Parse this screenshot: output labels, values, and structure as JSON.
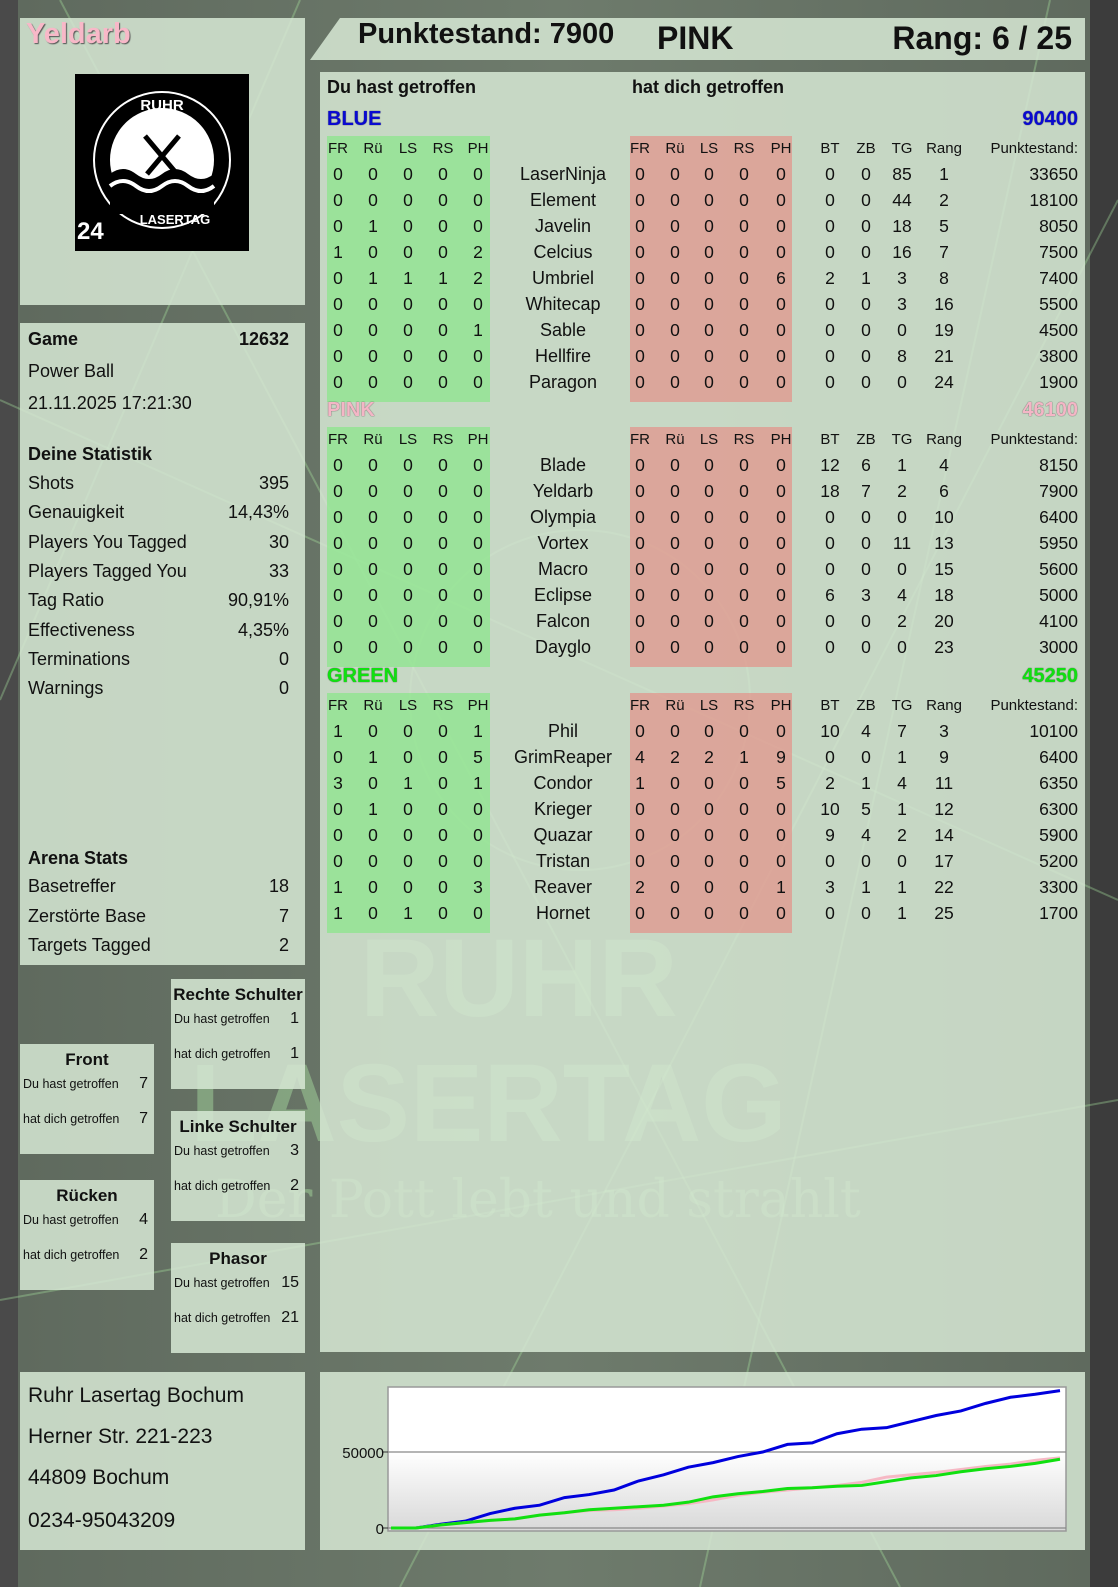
{
  "player": {
    "name": "Yeldarb",
    "score_label": "Punktestand: 7900",
    "team": "PINK",
    "rank_label": "Rang: 6 / 25"
  },
  "logo": {
    "text_top": "RUHR",
    "text_bottom": "LASERTAG",
    "badge": "24"
  },
  "watermark": {
    "line1": "RUHR",
    "line2": "LASERTAG",
    "slogan": "Der Pott lebt und strahlt"
  },
  "game": {
    "label": "Game",
    "id": "12632",
    "mode": "Power Ball",
    "datetime": "21.11.2025 17:21:30"
  },
  "stats": {
    "title": "Deine Statistik",
    "items": [
      {
        "label": "Shots",
        "value": "395"
      },
      {
        "label": "Genauigkeit",
        "value": "14,43%"
      },
      {
        "label": "Players You Tagged",
        "value": "30"
      },
      {
        "label": "Players Tagged You",
        "value": "33"
      },
      {
        "label": "Tag Ratio",
        "value": "90,91%"
      },
      {
        "label": "Effectiveness",
        "value": "4,35%"
      },
      {
        "label": "Terminations",
        "value": "0"
      },
      {
        "label": "Warnings",
        "value": "0"
      }
    ]
  },
  "arena": {
    "title": "Arena Stats",
    "items": [
      {
        "label": "Basetreffer",
        "value": "18"
      },
      {
        "label": "Zerstörte Base",
        "value": "7"
      },
      {
        "label": "Targets Tagged",
        "value": "2"
      }
    ]
  },
  "zones": [
    {
      "title": "Rechte Schulter",
      "hit_label": "Du hast getroffen",
      "hit": "1",
      "got_label": "hat dich getroffen",
      "got": "1"
    },
    {
      "title": "Front",
      "hit_label": "Du hast getroffen",
      "hit": "7",
      "got_label": "hat dich getroffen",
      "got": "7"
    },
    {
      "title": "Linke Schulter",
      "hit_label": "Du hast getroffen",
      "hit": "3",
      "got_label": "hat dich getroffen",
      "got": "2"
    },
    {
      "title": "Rücken",
      "hit_label": "Du hast getroffen",
      "hit": "4",
      "got_label": "hat dich getroffen",
      "got": "2"
    },
    {
      "title": "Phasor",
      "hit_label": "Du hast getroffen",
      "hit": "15",
      "got_label": "hat dich getroffen",
      "got": "21"
    }
  ],
  "address": [
    "Ruhr Lasertag Bochum",
    "Herner Str. 221-223",
    "44809 Bochum",
    "0234-95043209"
  ],
  "table": {
    "you_hit_label": "Du hast getroffen",
    "hit_you_label": "hat dich getroffen",
    "columns": [
      "FR",
      "Rü",
      "LS",
      "RS",
      "PH",
      "FR",
      "Rü",
      "LS",
      "RS",
      "PH",
      "BT",
      "ZB",
      "TG",
      "Rang",
      "Punktestand:"
    ],
    "teams": [
      {
        "name": "BLUE",
        "score": "90400",
        "color": "#0a0ad0",
        "rows": [
          [
            "0",
            "0",
            "0",
            "0",
            "0",
            "LaserNinja",
            "0",
            "0",
            "0",
            "0",
            "0",
            "0",
            "0",
            "85",
            "1",
            "33650"
          ],
          [
            "0",
            "0",
            "0",
            "0",
            "0",
            "Element",
            "0",
            "0",
            "0",
            "0",
            "0",
            "0",
            "0",
            "44",
            "2",
            "18100"
          ],
          [
            "0",
            "1",
            "0",
            "0",
            "0",
            "Javelin",
            "0",
            "0",
            "0",
            "0",
            "0",
            "0",
            "0",
            "18",
            "5",
            "8050"
          ],
          [
            "1",
            "0",
            "0",
            "0",
            "2",
            "Celcius",
            "0",
            "0",
            "0",
            "0",
            "0",
            "0",
            "0",
            "16",
            "7",
            "7500"
          ],
          [
            "0",
            "1",
            "1",
            "1",
            "2",
            "Umbriel",
            "0",
            "0",
            "0",
            "0",
            "6",
            "2",
            "1",
            "3",
            "8",
            "7400"
          ],
          [
            "0",
            "0",
            "0",
            "0",
            "0",
            "Whitecap",
            "0",
            "0",
            "0",
            "0",
            "0",
            "0",
            "0",
            "3",
            "16",
            "5500"
          ],
          [
            "0",
            "0",
            "0",
            "0",
            "1",
            "Sable",
            "0",
            "0",
            "0",
            "0",
            "0",
            "0",
            "0",
            "0",
            "19",
            "4500"
          ],
          [
            "0",
            "0",
            "0",
            "0",
            "0",
            "Hellfire",
            "0",
            "0",
            "0",
            "0",
            "0",
            "0",
            "0",
            "8",
            "21",
            "3800"
          ],
          [
            "0",
            "0",
            "0",
            "0",
            "0",
            "Paragon",
            "0",
            "0",
            "0",
            "0",
            "0",
            "0",
            "0",
            "0",
            "24",
            "1900"
          ]
        ]
      },
      {
        "name": "PINK",
        "score": "46100",
        "color": "#f4b6c6",
        "rows": [
          [
            "0",
            "0",
            "0",
            "0",
            "0",
            "Blade",
            "0",
            "0",
            "0",
            "0",
            "0",
            "12",
            "6",
            "1",
            "4",
            "8150"
          ],
          [
            "0",
            "0",
            "0",
            "0",
            "0",
            "Yeldarb",
            "0",
            "0",
            "0",
            "0",
            "0",
            "18",
            "7",
            "2",
            "6",
            "7900"
          ],
          [
            "0",
            "0",
            "0",
            "0",
            "0",
            "Olympia",
            "0",
            "0",
            "0",
            "0",
            "0",
            "0",
            "0",
            "0",
            "10",
            "6400"
          ],
          [
            "0",
            "0",
            "0",
            "0",
            "0",
            "Vortex",
            "0",
            "0",
            "0",
            "0",
            "0",
            "0",
            "0",
            "11",
            "13",
            "5950"
          ],
          [
            "0",
            "0",
            "0",
            "0",
            "0",
            "Macro",
            "0",
            "0",
            "0",
            "0",
            "0",
            "0",
            "0",
            "0",
            "15",
            "5600"
          ],
          [
            "0",
            "0",
            "0",
            "0",
            "0",
            "Eclipse",
            "0",
            "0",
            "0",
            "0",
            "0",
            "6",
            "3",
            "4",
            "18",
            "5000"
          ],
          [
            "0",
            "0",
            "0",
            "0",
            "0",
            "Falcon",
            "0",
            "0",
            "0",
            "0",
            "0",
            "0",
            "0",
            "2",
            "20",
            "4100"
          ],
          [
            "0",
            "0",
            "0",
            "0",
            "0",
            "Dayglo",
            "0",
            "0",
            "0",
            "0",
            "0",
            "0",
            "0",
            "0",
            "23",
            "3000"
          ]
        ]
      },
      {
        "name": "GREEN",
        "score": "45250",
        "color": "#10e010",
        "rows": [
          [
            "1",
            "0",
            "0",
            "0",
            "1",
            "Phil",
            "0",
            "0",
            "0",
            "0",
            "0",
            "10",
            "4",
            "7",
            "3",
            "10100"
          ],
          [
            "0",
            "1",
            "0",
            "0",
            "5",
            "GrimReaper",
            "4",
            "2",
            "2",
            "1",
            "9",
            "0",
            "0",
            "1",
            "9",
            "6400"
          ],
          [
            "3",
            "0",
            "1",
            "0",
            "1",
            "Condor",
            "1",
            "0",
            "0",
            "0",
            "5",
            "2",
            "1",
            "4",
            "11",
            "6350"
          ],
          [
            "0",
            "1",
            "0",
            "0",
            "0",
            "Krieger",
            "0",
            "0",
            "0",
            "0",
            "0",
            "10",
            "5",
            "1",
            "12",
            "6300"
          ],
          [
            "0",
            "0",
            "0",
            "0",
            "0",
            "Quazar",
            "0",
            "0",
            "0",
            "0",
            "0",
            "9",
            "4",
            "2",
            "14",
            "5900"
          ],
          [
            "0",
            "0",
            "0",
            "0",
            "0",
            "Tristan",
            "0",
            "0",
            "0",
            "0",
            "0",
            "0",
            "0",
            "0",
            "17",
            "5200"
          ],
          [
            "1",
            "0",
            "0",
            "0",
            "3",
            "Reaver",
            "2",
            "0",
            "0",
            "0",
            "1",
            "3",
            "1",
            "1",
            "22",
            "3300"
          ],
          [
            "1",
            "0",
            "1",
            "0",
            "0",
            "Hornet",
            "0",
            "0",
            "0",
            "0",
            "0",
            "0",
            "0",
            "1",
            "25",
            "1700"
          ]
        ]
      }
    ]
  },
  "chart_data": {
    "type": "line",
    "title": "",
    "xlabel": "",
    "ylabel": "",
    "ylim": [
      0,
      92000
    ],
    "yticks": [
      "0",
      "50000"
    ],
    "grid": true,
    "series": [
      {
        "color": "#0000dd",
        "values": [
          0,
          0,
          2500,
          4500,
          9500,
          13000,
          15000,
          20000,
          22000,
          25000,
          31000,
          35000,
          40000,
          43000,
          47000,
          50000,
          55000,
          56000,
          62000,
          65000,
          66000,
          70000,
          74000,
          77000,
          82000,
          86000,
          88000,
          90400
        ]
      },
      {
        "color": "#f6b8c4",
        "values": [
          0,
          0,
          2000,
          3500,
          5000,
          6000,
          8500,
          10000,
          11500,
          12000,
          13000,
          14500,
          16000,
          18500,
          21500,
          23500,
          25000,
          26500,
          28000,
          30000,
          33500,
          35000,
          36500,
          38500,
          40500,
          42000,
          44500,
          46100
        ]
      },
      {
        "color": "#10e010",
        "values": [
          0,
          0,
          2000,
          3500,
          5000,
          6000,
          8500,
          10000,
          12000,
          13000,
          14000,
          15000,
          17000,
          20500,
          22500,
          24000,
          26000,
          26500,
          27500,
          28000,
          30500,
          33000,
          34500,
          37000,
          39000,
          40500,
          42500,
          45250
        ]
      }
    ]
  }
}
